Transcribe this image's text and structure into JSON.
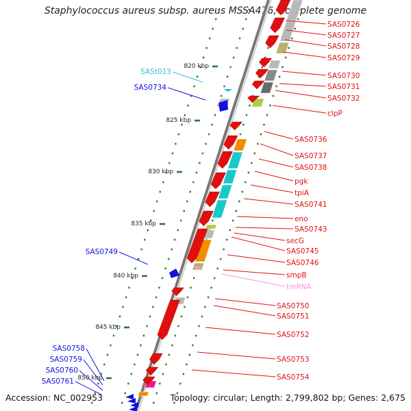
{
  "title": "Staphylococcus aureus subsp. aureus MSSA476, complete genome",
  "footer": {
    "accession": "Accession: NC_002953",
    "summary": "Topology: circular; Length: 2,799,802 bp; Genes: 2,675"
  },
  "colors": {
    "backbone": "#777777",
    "tick": "#2a7a2a",
    "forward_gene": "#1010e0",
    "reverse_gene": "#e01010",
    "rna_label": "#33bbdd",
    "tmrna_label": "#f29ad0",
    "cog_cyan": "#19c9c9",
    "cog_orange": "#f28c00",
    "cog_gray": "#b8b8b8",
    "cog_olive": "#b8b070",
    "cog_green": "#a8d040",
    "cog_magenta": "#f01890"
  },
  "scale_labels": [
    "820 kbp",
    "825 kbp",
    "830 kbp",
    "835 kbp",
    "840 kbp",
    "845 kbp",
    "850 kbp"
  ],
  "left_labels": [
    {
      "text": "SASt013",
      "kind": "rna"
    },
    {
      "text": "SAS0734",
      "kind": "forward"
    },
    {
      "text": "SAS0749",
      "kind": "forward"
    },
    {
      "text": "SAS0758",
      "kind": "forward"
    },
    {
      "text": "SAS0759",
      "kind": "forward"
    },
    {
      "text": "SAS0760",
      "kind": "forward"
    },
    {
      "text": "SAS0761",
      "kind": "forward"
    }
  ],
  "right_labels": [
    {
      "text": "SAS0726",
      "kind": "reverse"
    },
    {
      "text": "SAS0727",
      "kind": "reverse"
    },
    {
      "text": "SAS0728",
      "kind": "reverse"
    },
    {
      "text": "SAS0729",
      "kind": "reverse"
    },
    {
      "text": "SAS0730",
      "kind": "reverse"
    },
    {
      "text": "SAS0731",
      "kind": "reverse"
    },
    {
      "text": "SAS0732",
      "kind": "reverse"
    },
    {
      "text": "clpP",
      "kind": "reverse"
    },
    {
      "text": "SAS0736",
      "kind": "reverse"
    },
    {
      "text": "SAS0737",
      "kind": "reverse"
    },
    {
      "text": "SAS0738",
      "kind": "reverse"
    },
    {
      "text": "pgk",
      "kind": "reverse"
    },
    {
      "text": "tpiA",
      "kind": "reverse"
    },
    {
      "text": "SAS0741",
      "kind": "reverse"
    },
    {
      "text": "eno",
      "kind": "reverse"
    },
    {
      "text": "SAS0743",
      "kind": "reverse"
    },
    {
      "text": "secG",
      "kind": "reverse"
    },
    {
      "text": "SAS0745",
      "kind": "reverse"
    },
    {
      "text": "SAS0746",
      "kind": "reverse"
    },
    {
      "text": "smpB",
      "kind": "reverse"
    },
    {
      "text": "tmRNA",
      "kind": "tmrna"
    },
    {
      "text": "SAS0750",
      "kind": "reverse"
    },
    {
      "text": "SAS0751",
      "kind": "reverse"
    },
    {
      "text": "SAS0752",
      "kind": "reverse"
    },
    {
      "text": "SAS0753",
      "kind": "reverse"
    },
    {
      "text": "SAS0754",
      "kind": "reverse"
    }
  ]
}
